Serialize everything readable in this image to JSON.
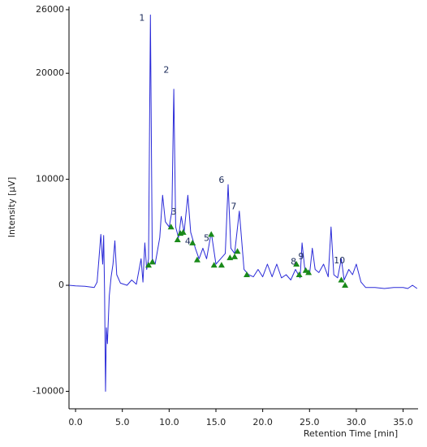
{
  "chart_data": {
    "type": "line",
    "xlabel": "Retention Time [min]",
    "ylabel": "Intensity [µV]",
    "xlim": [
      -0.7,
      36.6
    ],
    "ylim": [
      -11650,
      26300
    ],
    "xticks": [
      {
        "value": 0,
        "label": "0.0"
      },
      {
        "value": 5,
        "label": "5.0"
      },
      {
        "value": 10,
        "label": "10.0"
      },
      {
        "value": 15,
        "label": "15.0"
      },
      {
        "value": 20,
        "label": "20.0"
      },
      {
        "value": 25,
        "label": "25.0"
      },
      {
        "value": 30,
        "label": "30.0"
      },
      {
        "value": 35,
        "label": "35.0"
      }
    ],
    "yticks": [
      -10000,
      0,
      10000,
      20000,
      26000
    ],
    "series": [
      {
        "color": "#2a2ad8",
        "x": [
          -0.7,
          0,
          1,
          2,
          2.3,
          2.5,
          2.7,
          2.9,
          3.0,
          3.1,
          3.2,
          3.3,
          3.4,
          3.6,
          3.8,
          4.0,
          4.2,
          4.4,
          4.8,
          5.5,
          6.0,
          6.5,
          7.0,
          7.2,
          7.4,
          7.6,
          7.8,
          8.0,
          8.2,
          8.5,
          9.0,
          9.3,
          9.6,
          10.0,
          10.3,
          10.5,
          10.7,
          11.0,
          11.3,
          11.6,
          12.0,
          12.3,
          12.8,
          13.2,
          13.6,
          14.0,
          14.5,
          15.0,
          15.5,
          16.0,
          16.3,
          16.6,
          17.0,
          17.5,
          18.0,
          18.5,
          19.0,
          19.5,
          20.0,
          20.5,
          21.0,
          21.5,
          22.0,
          22.5,
          23.0,
          23.5,
          24.0,
          24.2,
          24.5,
          25.0,
          25.3,
          25.6,
          26.0,
          26.5,
          27.0,
          27.3,
          27.6,
          28.0,
          28.4,
          28.7,
          29.2,
          29.6,
          30.0,
          30.5,
          31,
          32,
          33,
          34,
          35,
          35.5,
          36,
          36.5
        ],
        "values": [
          0,
          -50,
          -100,
          -200,
          300,
          2500,
          4800,
          2000,
          4700,
          -500,
          -10000,
          -4000,
          -5500,
          -1000,
          800,
          2000,
          4200,
          1000,
          200,
          0,
          500,
          100,
          2500,
          300,
          4000,
          1500,
          2500,
          25500,
          2500,
          2000,
          4500,
          8500,
          6000,
          5500,
          7000,
          18500,
          5500,
          4500,
          6500,
          5000,
          8500,
          5000,
          3500,
          2500,
          3500,
          2500,
          5000,
          2000,
          2500,
          3000,
          9500,
          3500,
          3000,
          7000,
          1500,
          1000,
          800,
          1500,
          800,
          2000,
          800,
          2000,
          700,
          1000,
          500,
          1500,
          700,
          4000,
          1500,
          1000,
          3500,
          1500,
          1200,
          2000,
          800,
          5500,
          1000,
          700,
          2500,
          500,
          1500,
          1000,
          2000,
          300,
          -200,
          -200,
          -300,
          -200,
          -200,
          -300,
          0,
          -300
        ]
      }
    ],
    "markers": {
      "color": "#1a8a1a",
      "x": [
        7.8,
        8.2,
        10.2,
        10.9,
        11.2,
        11.5,
        12.5,
        13.0,
        14.5,
        14.8,
        15.6,
        16.5,
        17.0,
        17.3,
        18.3,
        23.6,
        23.9,
        24.6,
        24.9,
        28.4,
        28.8
      ],
      "y": [
        1900,
        2200,
        5500,
        4300,
        4900,
        5000,
        4000,
        2400,
        4800,
        1900,
        1900,
        2600,
        2700,
        3200,
        1000,
        2000,
        1000,
        1400,
        1200,
        500,
        0
      ]
    },
    "annotations": [
      {
        "label": "1",
        "x": 7.1,
        "y": 25200
      },
      {
        "label": "2",
        "x": 9.7,
        "y": 20300
      },
      {
        "label": "3",
        "x": 10.5,
        "y": 6900
      },
      {
        "label": "4",
        "x": 12.0,
        "y": 4100
      },
      {
        "label": "5",
        "x": 14.0,
        "y": 4400
      },
      {
        "label": "6",
        "x": 15.6,
        "y": 9900
      },
      {
        "label": "7",
        "x": 16.9,
        "y": 7400
      },
      {
        "label": "8",
        "x": 23.3,
        "y": 2200
      },
      {
        "label": "9",
        "x": 24.1,
        "y": 2700
      },
      {
        "label": "10",
        "x": 28.2,
        "y": 2300
      }
    ]
  }
}
